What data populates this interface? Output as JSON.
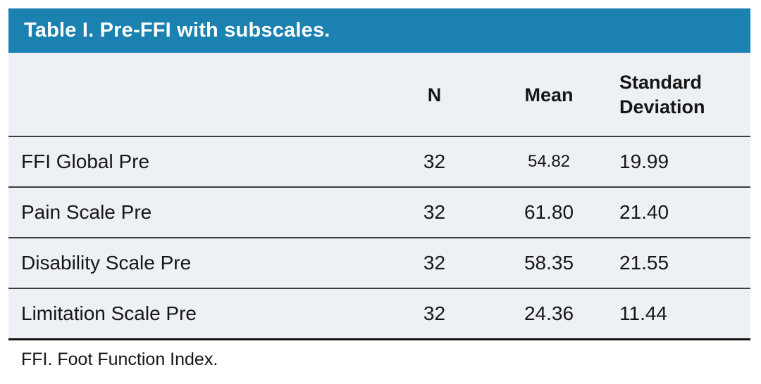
{
  "colors": {
    "accent": "#1a81b0",
    "table_body_bg": "#edf1f6",
    "text": "#161616",
    "row_divider": "#3d3d3d",
    "bottom_rule": "#141414",
    "title_text": "#ffffff"
  },
  "table": {
    "title": "Table I. Pre-FFI with subscales.",
    "columns": {
      "label": "",
      "n": "N",
      "mean": "Mean",
      "sd": "Standard Deviation"
    },
    "rows": [
      {
        "label": "FFI Global Pre",
        "n": "32",
        "mean": "54.82",
        "sd": "19.99"
      },
      {
        "label": "Pain Scale Pre",
        "n": "32",
        "mean": "61.80",
        "sd": "21.40"
      },
      {
        "label": "Disability Scale Pre",
        "n": "32",
        "mean": "58.35",
        "sd": "21.55"
      },
      {
        "label": "Limitation Scale Pre",
        "n": "32",
        "mean": "24.36",
        "sd": "11.44"
      }
    ],
    "footnote": "FFI. Foot Function Index."
  },
  "chart_data": {
    "type": "table",
    "title": "Table I. Pre-FFI with subscales.",
    "categories": [
      "FFI Global Pre",
      "Pain Scale Pre",
      "Disability Scale Pre",
      "Limitation Scale Pre"
    ],
    "series": [
      {
        "name": "N",
        "values": [
          32,
          32,
          32,
          32
        ]
      },
      {
        "name": "Mean",
        "values": [
          54.82,
          61.8,
          58.35,
          24.36
        ]
      },
      {
        "name": "Standard Deviation",
        "values": [
          19.99,
          21.4,
          21.55,
          11.44
        ]
      }
    ],
    "footnote": "FFI. Foot Function Index."
  }
}
